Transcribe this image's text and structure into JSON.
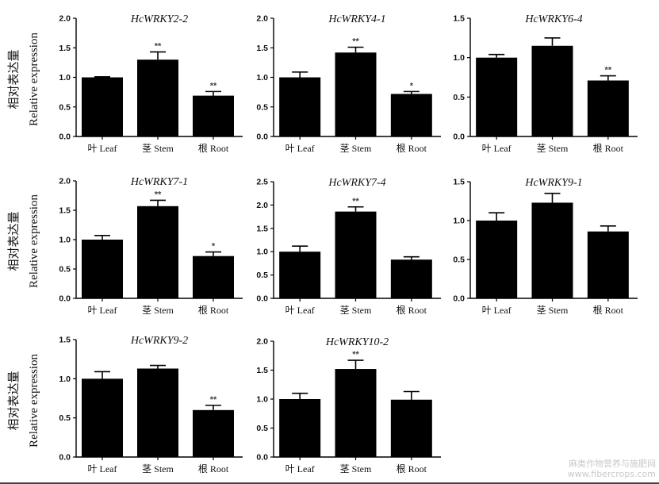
{
  "figure": {
    "ylabel_cn": "相对表达量",
    "ylabel_en": "Relative expression",
    "watermark_line1": "麻类作物营养与施肥网",
    "watermark_line2": "www.fibercrops.com"
  },
  "chart_data": [
    {
      "type": "bar",
      "title": "HcWRKY2-2",
      "categories": [
        "叶 Leaf",
        "茎 Stem",
        "根 Root"
      ],
      "values": [
        1.0,
        1.3,
        0.69
      ],
      "errors": [
        0.01,
        0.13,
        0.07
      ],
      "significance": [
        "",
        "**",
        "**"
      ],
      "ylim": [
        0,
        2.0
      ],
      "yticks": [
        "0.0",
        "0.5",
        "1.0",
        "1.5",
        "2.0"
      ]
    },
    {
      "type": "bar",
      "title": "HcWRKY4-1",
      "categories": [
        "叶 Leaf",
        "茎 Stem",
        "根 Root"
      ],
      "values": [
        1.0,
        1.42,
        0.72
      ],
      "errors": [
        0.09,
        0.09,
        0.04
      ],
      "significance": [
        "",
        "**",
        "*"
      ],
      "ylim": [
        0,
        2.0
      ],
      "yticks": [
        "0.0",
        "0.5",
        "1.0",
        "1.5",
        "2.0"
      ]
    },
    {
      "type": "bar",
      "title": "HcWRKY6-4",
      "categories": [
        "叶 Leaf",
        "茎 Stem",
        "根 Root"
      ],
      "values": [
        1.0,
        1.15,
        0.71
      ],
      "errors": [
        0.04,
        0.1,
        0.06
      ],
      "significance": [
        "",
        "",
        "**"
      ],
      "ylim": [
        0,
        1.5
      ],
      "yticks": [
        "0.0",
        "0.5",
        "1.0",
        "1.5"
      ]
    },
    {
      "type": "bar",
      "title": "HcWRKY7-1",
      "categories": [
        "叶 Leaf",
        "茎 Stem",
        "根 Root"
      ],
      "values": [
        1.0,
        1.57,
        0.72
      ],
      "errors": [
        0.07,
        0.1,
        0.07
      ],
      "significance": [
        "",
        "**",
        "*"
      ],
      "ylim": [
        0,
        2.0
      ],
      "yticks": [
        "0.0",
        "0.5",
        "1.0",
        "1.5",
        "2.0"
      ]
    },
    {
      "type": "bar",
      "title": "HcWRKY7-4",
      "categories": [
        "叶 Leaf",
        "茎 Stem",
        "根 Root"
      ],
      "values": [
        1.0,
        1.86,
        0.83
      ],
      "errors": [
        0.12,
        0.1,
        0.06
      ],
      "significance": [
        "",
        "**",
        ""
      ],
      "ylim": [
        0,
        2.5
      ],
      "yticks": [
        "0.0",
        "0.5",
        "1.0",
        "1.5",
        "2.0",
        "2.5"
      ]
    },
    {
      "type": "bar",
      "title": "HcWRKY9-1",
      "categories": [
        "叶 Leaf",
        "茎 Stem",
        "根 Root"
      ],
      "values": [
        1.0,
        1.23,
        0.86
      ],
      "errors": [
        0.1,
        0.12,
        0.07
      ],
      "significance": [
        "",
        "",
        ""
      ],
      "ylim": [
        0,
        1.5
      ],
      "yticks": [
        "0.0",
        "0.5",
        "1.0",
        "1.5"
      ]
    },
    {
      "type": "bar",
      "title": "HcWRKY9-2",
      "categories": [
        "叶 Leaf",
        "茎 Stem",
        "根 Root"
      ],
      "values": [
        1.0,
        1.13,
        0.6
      ],
      "errors": [
        0.09,
        0.04,
        0.06
      ],
      "significance": [
        "",
        "",
        "**"
      ],
      "ylim": [
        0,
        1.5
      ],
      "yticks": [
        "0.0",
        "0.5",
        "1.0",
        "1.5"
      ]
    },
    {
      "type": "bar",
      "title": "HcWRKY10-2",
      "categories": [
        "叶 Leaf",
        "茎 Stem",
        "根 Root"
      ],
      "values": [
        1.0,
        1.52,
        0.99
      ],
      "errors": [
        0.1,
        0.15,
        0.14
      ],
      "significance": [
        "",
        "**",
        ""
      ],
      "ylim": [
        0,
        2.0
      ],
      "yticks": [
        "0.0",
        "0.5",
        "1.0",
        "1.5",
        "2.0"
      ]
    }
  ]
}
